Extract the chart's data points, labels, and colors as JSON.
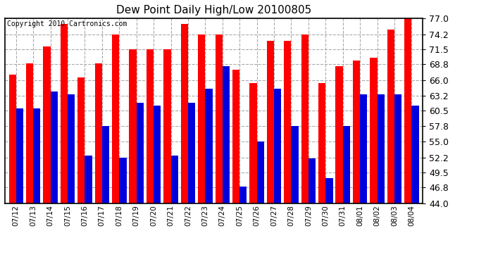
{
  "title": "Dew Point Daily High/Low 20100805",
  "copyright": "Copyright 2010 Cartronics.com",
  "dates": [
    "07/12",
    "07/13",
    "07/14",
    "07/15",
    "07/16",
    "07/17",
    "07/18",
    "07/19",
    "07/20",
    "07/21",
    "07/22",
    "07/23",
    "07/24",
    "07/25",
    "07/26",
    "07/27",
    "07/28",
    "07/29",
    "07/30",
    "07/31",
    "08/01",
    "08/02",
    "08/03",
    "08/04"
  ],
  "highs": [
    67.0,
    69.0,
    72.0,
    76.0,
    66.5,
    69.0,
    74.2,
    71.5,
    71.5,
    71.5,
    76.0,
    74.2,
    74.2,
    67.8,
    65.5,
    73.0,
    73.0,
    74.2,
    65.5,
    68.5,
    69.5,
    70.0,
    75.0,
    77.0
  ],
  "lows": [
    61.0,
    61.0,
    64.0,
    63.5,
    52.5,
    57.8,
    52.2,
    62.0,
    61.5,
    52.5,
    62.0,
    64.5,
    68.5,
    47.0,
    55.0,
    64.5,
    57.8,
    52.0,
    48.5,
    57.8,
    63.5,
    63.5,
    63.5,
    61.5
  ],
  "high_color": "#ff0000",
  "low_color": "#0000dd",
  "bg_color": "#ffffff",
  "grid_color": "#aaaaaa",
  "ymin": 44.0,
  "ymax": 77.0,
  "yticks": [
    44.0,
    46.8,
    49.5,
    52.2,
    55.0,
    57.8,
    60.5,
    63.2,
    66.0,
    68.8,
    71.5,
    74.2,
    77.0
  ]
}
